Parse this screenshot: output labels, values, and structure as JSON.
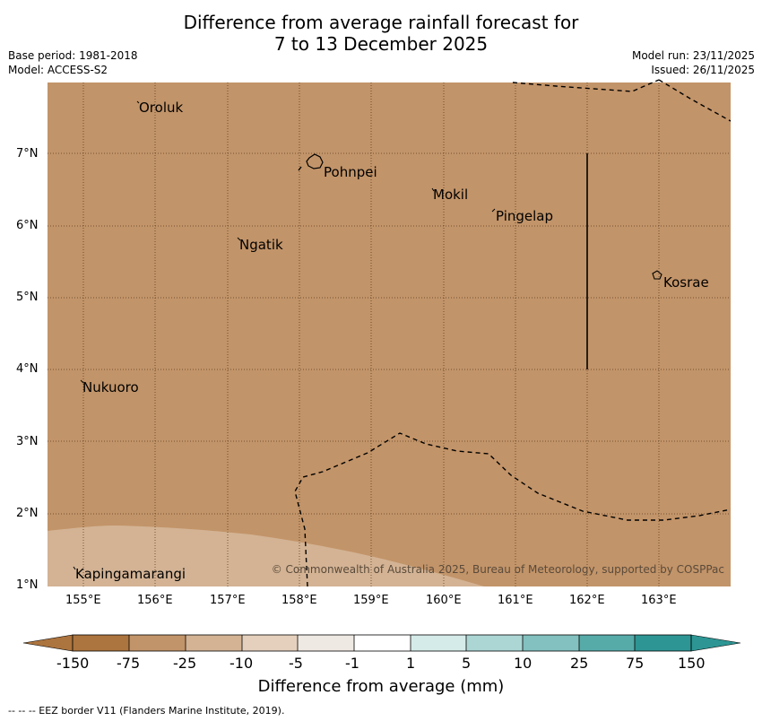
{
  "title": {
    "line1": "Difference from average rainfall forecast for",
    "line2": "7 to 13 December 2025"
  },
  "meta": {
    "base_period": "Base period: 1981-2018",
    "model": "Model: ACCESS-S2",
    "model_run": "Model run: 23/11/2025",
    "issued": "Issued: 26/11/2025"
  },
  "map": {
    "lat_labels": [
      "7°N",
      "6°N",
      "5°N",
      "4°N",
      "3°N",
      "2°N",
      "1°N"
    ],
    "lon_labels": [
      "155°E",
      "156°E",
      "157°E",
      "158°E",
      "159°E",
      "160°E",
      "161°E",
      "162°E",
      "163°E"
    ],
    "places": [
      "Oroluk",
      "Pohnpei",
      "Mokil",
      "Pingelap",
      "Ngatik",
      "Kosrae",
      "Nukuoro",
      "Kapingamarangi"
    ],
    "copyright": "© Commonwealth of Australia 2025, Bureau of Meteorology, supported by COSPPac",
    "colors": {
      "dry": "#c29469",
      "light_dry": "#d3b394",
      "grid": "#5a3d20"
    }
  },
  "colorbar": {
    "labels": [
      "-150",
      "-75",
      "-25",
      "-10",
      "-5",
      "-1",
      "1",
      "5",
      "10",
      "25",
      "75",
      "150"
    ],
    "colors": [
      "#ac743e",
      "#c29469",
      "#d3b394",
      "#e5d0bd",
      "#efe9e3",
      "#ffffff",
      "#d5ebe9",
      "#acd6d4",
      "#82c1bf",
      "#56aba9",
      "#2d9694",
      "#2d9694"
    ],
    "title": "Difference from average (mm)"
  },
  "footnote": "--  --  -- EEZ border V11 (Flanders Marine Institute, 2019)."
}
